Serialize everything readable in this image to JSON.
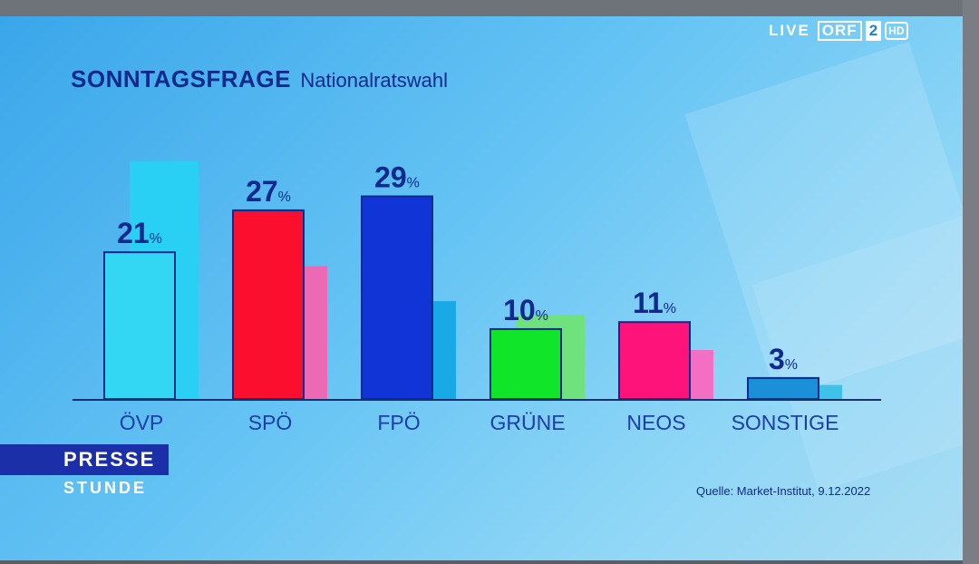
{
  "channel_logo": {
    "live": "LIVE",
    "orf": "ORF",
    "number": "2",
    "hd": "HD"
  },
  "title": {
    "main": "SONNTAGSFRAGE",
    "sub": "Nationalratswahl"
  },
  "show": {
    "line1": "PRESSE",
    "line2": "STUNDE"
  },
  "source": "Quelle: Market-Institut, 9.12.2022",
  "chart_data": {
    "type": "bar",
    "categories": [
      "ÖVP",
      "SPÖ",
      "FPÖ",
      "GRÜNE",
      "NEOS",
      "SONSTIGE"
    ],
    "series": [
      {
        "values": [
          21,
          27,
          29,
          10,
          11,
          3
        ],
        "colors": [
          "#33d6f3",
          "#fb0f2f",
          "#1034d6",
          "#11e52a",
          "#fd1379",
          "#1b8fd8"
        ]
      },
      {
        "values": [
          34,
          19,
          14,
          12,
          7,
          2
        ],
        "colors": [
          "#29d0f3",
          "#ec6ab4",
          "#18a9e6",
          "#6fe27d",
          "#f36fc4",
          "#3fc2ea"
        ]
      }
    ],
    "value_suffix": "%",
    "labels_on": "series1",
    "ylim": [
      0,
      34
    ],
    "grid": false,
    "legend": "none"
  }
}
